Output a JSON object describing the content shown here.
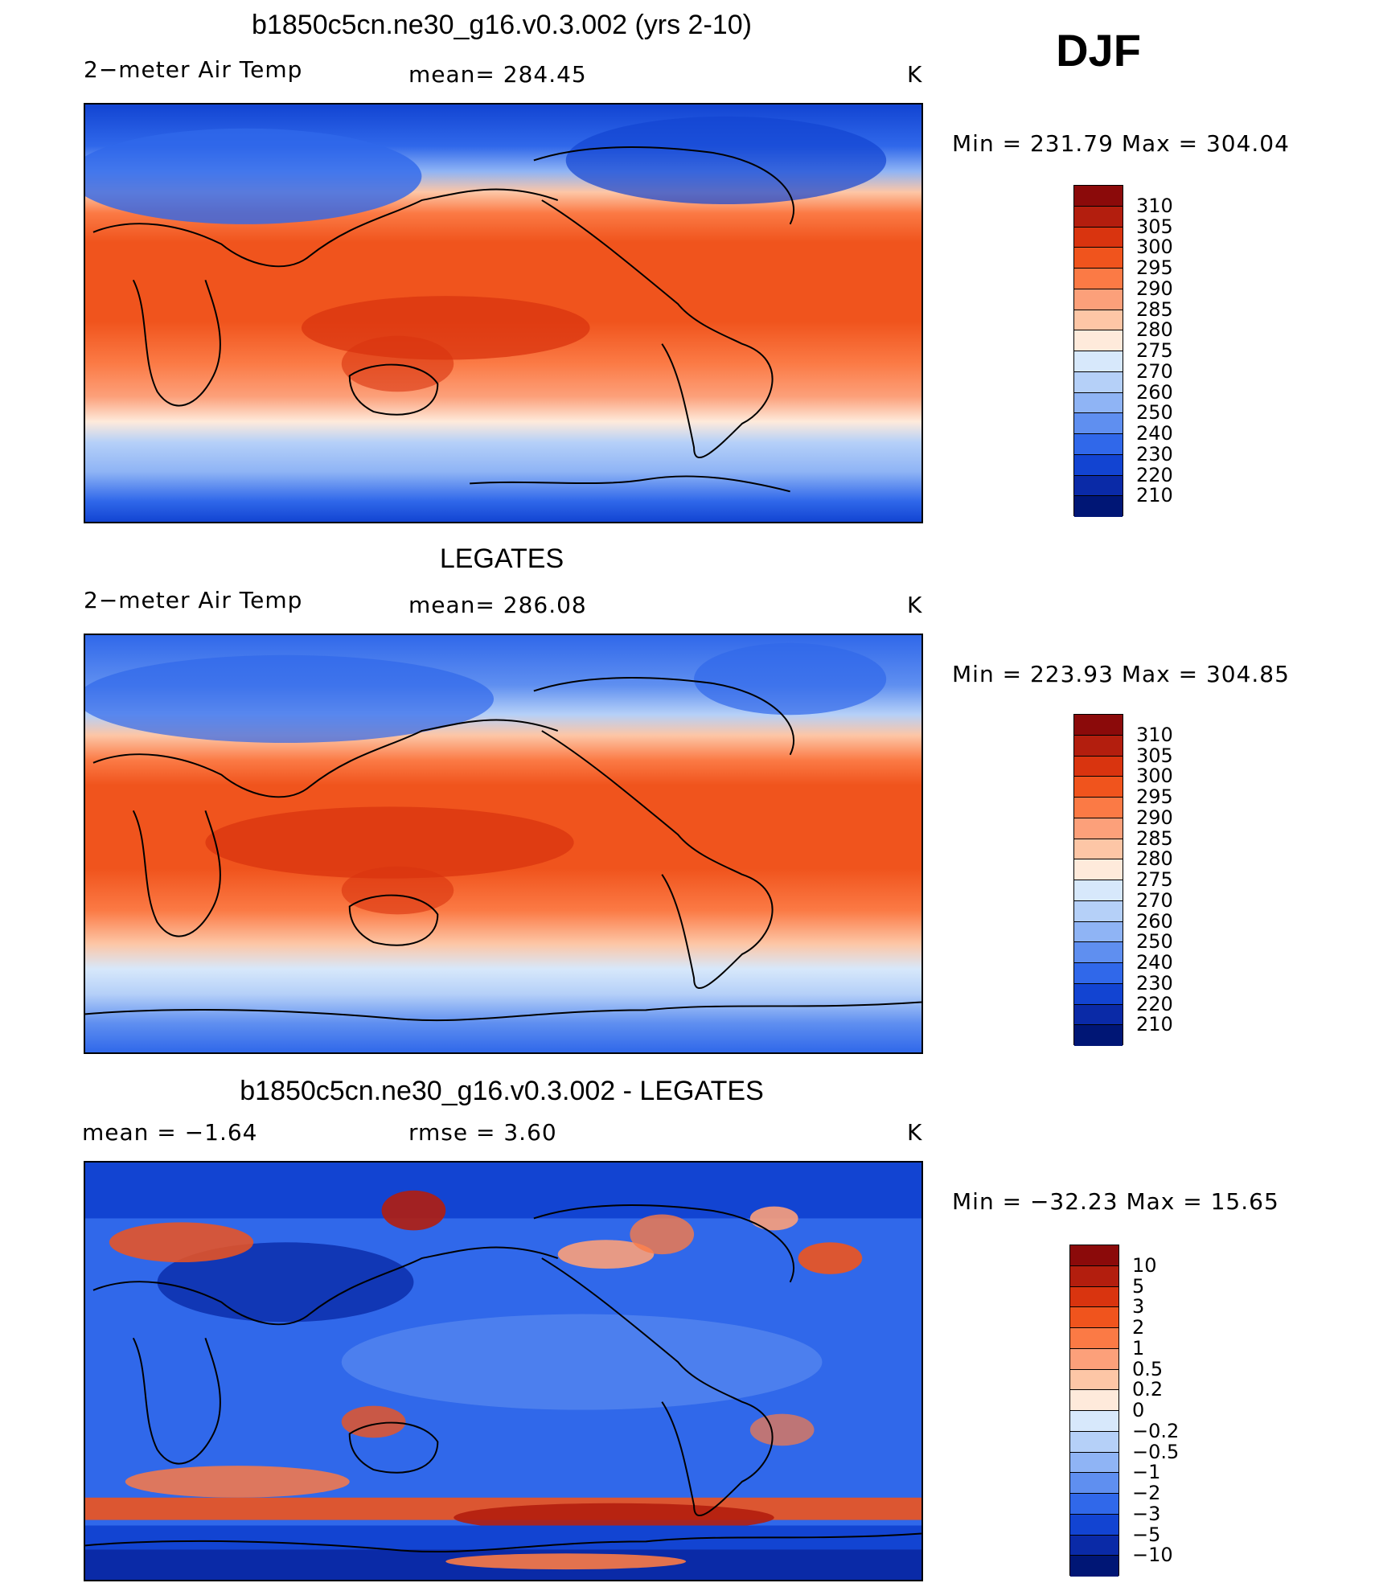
{
  "season": "DJF",
  "units": "K",
  "panels": [
    {
      "id": "model",
      "title": "b1850c5cn.ne30_g16.v0.3.002 (yrs 2-10)",
      "left_label": "2−meter Air Temp",
      "center_label": "mean= 284.45",
      "minmax": "Min = 231.79 Max = 304.04",
      "colorbar": {
        "labels": [
          "310",
          "305",
          "300",
          "295",
          "290",
          "285",
          "280",
          "275",
          "270",
          "260",
          "250",
          "240",
          "230",
          "220",
          "210"
        ],
        "colors": [
          "#8b0a0a",
          "#b31e0e",
          "#d9340f",
          "#f0541d",
          "#fb7a45",
          "#fca07a",
          "#fdc6a6",
          "#feeadb",
          "#d7e8fb",
          "#b5d0f8",
          "#8fb4f5",
          "#5f8ff0",
          "#3068ea",
          "#1244d2",
          "#0a2aa7",
          "#001675"
        ]
      }
    },
    {
      "id": "obs",
      "title": "LEGATES",
      "left_label": "2−meter Air Temp",
      "center_label": "mean= 286.08",
      "minmax": "Min = 223.93 Max = 304.85",
      "colorbar": {
        "labels": [
          "310",
          "305",
          "300",
          "295",
          "290",
          "285",
          "280",
          "275",
          "270",
          "260",
          "250",
          "240",
          "230",
          "220",
          "210"
        ],
        "colors": [
          "#8b0a0a",
          "#b31e0e",
          "#d9340f",
          "#f0541d",
          "#fb7a45",
          "#fca07a",
          "#fdc6a6",
          "#feeadb",
          "#d7e8fb",
          "#b5d0f8",
          "#8fb4f5",
          "#5f8ff0",
          "#3068ea",
          "#1244d2",
          "#0a2aa7",
          "#001675"
        ]
      }
    },
    {
      "id": "diff",
      "title": "b1850c5cn.ne30_g16.v0.3.002 - LEGATES",
      "left_label": "mean =   −1.64",
      "center_label": "rmse =    3.60",
      "minmax": "Min = −32.23 Max =   15.65",
      "colorbar": {
        "labels": [
          "10",
          "5",
          "3",
          "2",
          "1",
          "0.5",
          "0.2",
          "0",
          "−0.2",
          "−0.5",
          "−1",
          "−2",
          "−3",
          "−5",
          "−10"
        ],
        "colors": [
          "#8b0a0a",
          "#b31e0e",
          "#d9340f",
          "#f0541d",
          "#fb7a45",
          "#fca07a",
          "#fdc6a6",
          "#feeadb",
          "#d7e8fb",
          "#b5d0f8",
          "#8fb4f5",
          "#5f8ff0",
          "#3068ea",
          "#1244d2",
          "#0a2aa7",
          "#001675"
        ]
      }
    }
  ]
}
